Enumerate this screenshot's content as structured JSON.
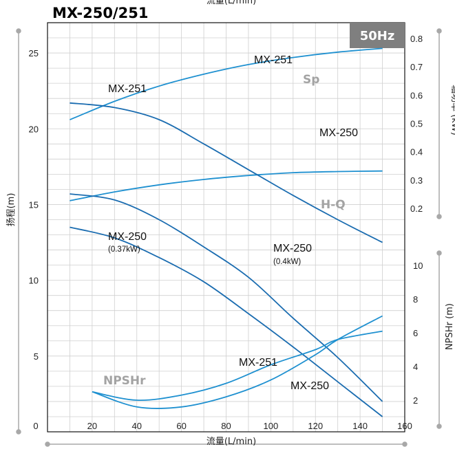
{
  "chart_data": {
    "type": "line",
    "title": "MX-250/251",
    "frequency_badge": "50Hz",
    "xlabel": "流量(L/min)",
    "xlabel_top": "流量(L/min)",
    "xlim": [
      0,
      160
    ],
    "x_ticks": [
      "0",
      "20",
      "40",
      "60",
      "80",
      "100",
      "120",
      "140",
      "160"
    ],
    "left_axis": {
      "label": "扬程(m)",
      "lim": [
        0,
        27
      ],
      "ticks": [
        "5",
        "10",
        "15",
        "20",
        "25"
      ]
    },
    "power_axis": {
      "label": "轴功率 (kW)",
      "lim": [
        0.15,
        0.85
      ],
      "ticks": [
        "0.2",
        "0.3",
        "0.4",
        "0.5",
        "0.6",
        "0.7",
        "0.8"
      ]
    },
    "npshr_axis": {
      "label": "NPSHr (m)",
      "lim": [
        0,
        11.5
      ],
      "ticks": [
        "2",
        "4",
        "6",
        "8",
        "10"
      ]
    },
    "group_labels": {
      "sp": "Sp",
      "hq": "H-Q",
      "npshr": "NPSHr"
    },
    "curve_labels": {
      "sp_251": "MX-251",
      "hq_251": "MX-251",
      "sp_250": "MX-250",
      "hq_250": "MX-250",
      "hq_250_power": "(0.4kW)",
      "hq_250b": "MX-250",
      "hq_250b_power": "(0.37kW)",
      "npsh_251": "MX-251",
      "npsh_250": "MX-250"
    },
    "series": [
      {
        "id": "sp_251",
        "axis": "power",
        "x": [
          10,
          30,
          50,
          70,
          90,
          110,
          130,
          150
        ],
        "y": [
          0.513,
          0.578,
          0.632,
          0.674,
          0.708,
          0.733,
          0.752,
          0.765
        ]
      },
      {
        "id": "sp_250",
        "axis": "power",
        "x": [
          10,
          30,
          50,
          70,
          90,
          110,
          130,
          150
        ],
        "y": [
          0.227,
          0.258,
          0.283,
          0.302,
          0.316,
          0.326,
          0.33,
          0.332
        ]
      },
      {
        "id": "hq_251",
        "axis": "head",
        "x": [
          10,
          30,
          50,
          70,
          90,
          110,
          130,
          150
        ],
        "y": [
          21.7,
          21.4,
          20.6,
          19.0,
          17.3,
          15.6,
          14.0,
          12.5
        ]
      },
      {
        "id": "hq_250",
        "axis": "head",
        "x": [
          10,
          30,
          50,
          70,
          90,
          110,
          130,
          150
        ],
        "y": [
          15.7,
          15.3,
          14.0,
          12.2,
          10.2,
          7.5,
          4.9,
          2.0
        ]
      },
      {
        "id": "hq_250b",
        "axis": "head",
        "x": [
          10,
          30,
          50,
          70,
          90,
          110,
          130,
          150
        ],
        "y": [
          13.5,
          12.8,
          11.5,
          9.9,
          7.8,
          5.6,
          3.3,
          1.0
        ]
      },
      {
        "id": "npsh_251",
        "axis": "npshr",
        "x": [
          20,
          40,
          60,
          80,
          100,
          120,
          130,
          150
        ],
        "y": [
          2.5,
          2.0,
          2.3,
          3.0,
          4.1,
          5.0,
          5.6,
          6.1
        ]
      },
      {
        "id": "npsh_250",
        "axis": "npshr",
        "x": [
          20,
          40,
          60,
          80,
          100,
          120,
          130,
          150
        ],
        "y": [
          2.5,
          1.6,
          1.6,
          2.2,
          3.2,
          4.7,
          5.6,
          7.0
        ]
      }
    ],
    "grid": true
  }
}
